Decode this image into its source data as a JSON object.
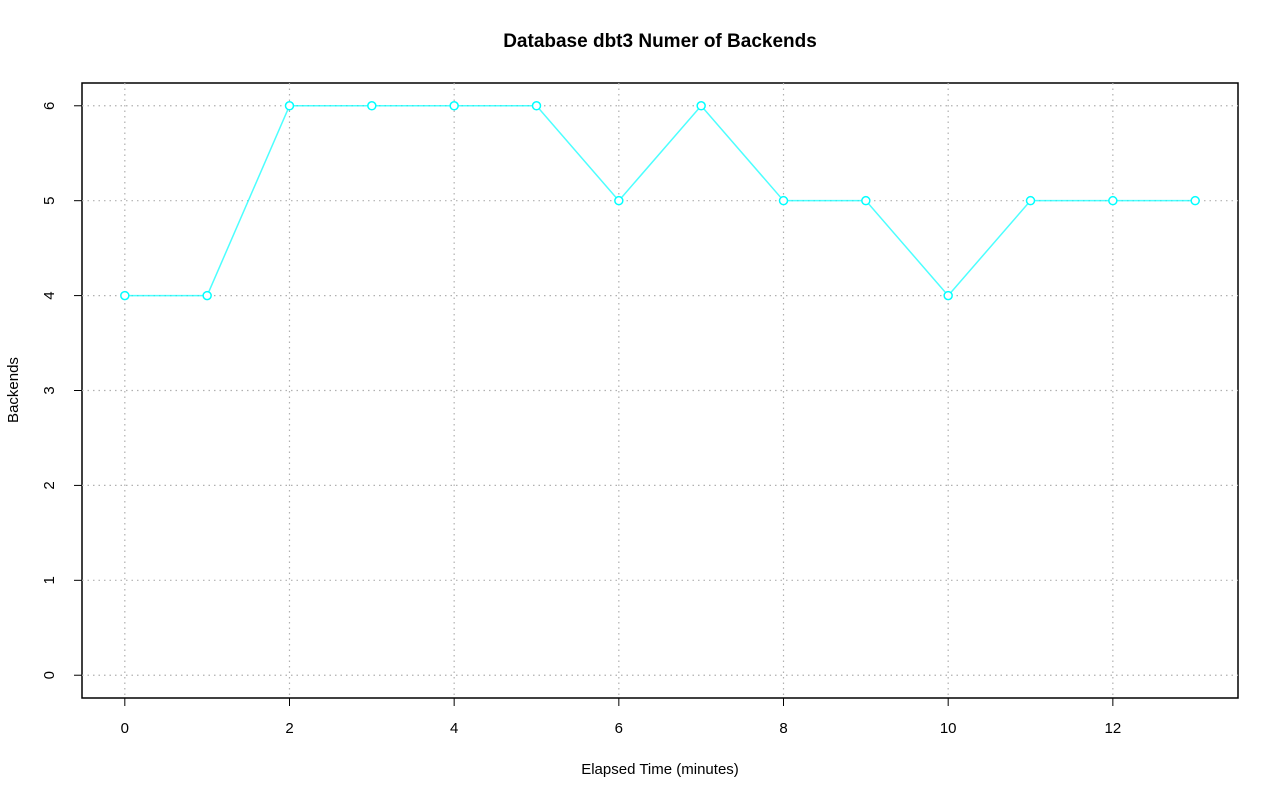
{
  "chart_data": {
    "type": "line",
    "title": "Database dbt3 Numer of Backends",
    "x_label": "Elapsed Time (minutes)",
    "y_label": "Backends",
    "x": [
      0,
      1,
      2,
      3,
      4,
      5,
      6,
      7,
      8,
      9,
      10,
      11,
      12,
      13
    ],
    "values": [
      4,
      4,
      6,
      6,
      6,
      6,
      5,
      6,
      5,
      5,
      4,
      5,
      5,
      5
    ],
    "color": "#00ffff",
    "xlim": [
      -0.52,
      13.52
    ],
    "xticks": [
      0,
      2,
      4,
      6,
      8,
      10,
      12
    ],
    "ylim": [
      -0.24,
      6.24
    ],
    "yticks": [
      0,
      1,
      2,
      3,
      4,
      5,
      6
    ],
    "grid": true
  }
}
